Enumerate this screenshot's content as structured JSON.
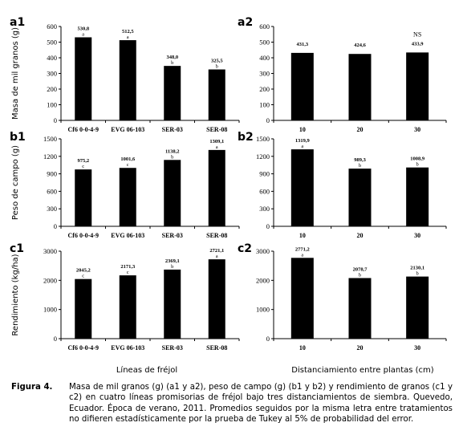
{
  "figure": {
    "xtitle_left": "Líneas de fréjol",
    "xtitle_right": "Distanciamiento entre plantas (cm)",
    "caption_label": "Figura 4.",
    "caption_text": "Masa de mil granos (g) (a1 y a2), peso de campo (g) (b1 y b2) y rendimiento de granos (c1 y c2) en cuatro líneas promisorias de fréjol bajo tres distanciamientos de siembra. Quevedo, Ecuador. Época de verano, 2011. Promedios seguidos por la misma letra entre tratamientos no difieren estadísticamente por la prueba de Tukey al 5% de probabilidad del error."
  },
  "chart_data": [
    {
      "id": "a1",
      "panel_label": "a1",
      "type": "bar",
      "ylabel": "Masa de mil granos (g)",
      "categories": [
        "Cf6 0-0-4-9",
        "EVG 06-103",
        "SER-03",
        "SER-08"
      ],
      "values": [
        530.8,
        512.5,
        348.0,
        325.5
      ],
      "value_labels": [
        "530,8",
        "512,5",
        "348,0",
        "325,5"
      ],
      "letters": [
        "a",
        "a",
        "b",
        "b"
      ],
      "ylim": [
        0,
        600
      ],
      "yticks": [
        0,
        100,
        200,
        300,
        400,
        500,
        600
      ],
      "ytick_labels": [
        "0",
        "100",
        "200",
        "300",
        "400",
        "500",
        "600"
      ],
      "annotation": ""
    },
    {
      "id": "a2",
      "panel_label": "a2",
      "type": "bar",
      "ylabel": "",
      "categories": [
        "10",
        "20",
        "30"
      ],
      "values": [
        431.3,
        424.6,
        433.9
      ],
      "value_labels": [
        "431,3",
        "424,6",
        "433,9"
      ],
      "letters": [
        "",
        "",
        ""
      ],
      "ylim": [
        0,
        600
      ],
      "yticks": [
        0,
        100,
        200,
        300,
        400,
        500,
        600
      ],
      "ytick_labels": [
        "0",
        "100",
        "200",
        "300",
        "400",
        "500",
        "600"
      ],
      "annotation": "NS"
    },
    {
      "id": "b1",
      "panel_label": "b1",
      "type": "bar",
      "ylabel": "Peso de campo (g)",
      "categories": [
        "Cf6 0-0-4-9",
        "EVG 06-103",
        "SER-03",
        "SER-08"
      ],
      "values": [
        975.2,
        1001.6,
        1138.2,
        1309.1
      ],
      "value_labels": [
        "975,2",
        "1001,6",
        "1138,2",
        "1309,1"
      ],
      "letters": [
        "c",
        "c",
        "b",
        "a"
      ],
      "ylim": [
        0,
        1500
      ],
      "yticks": [
        0,
        300,
        600,
        900,
        1200,
        1500
      ],
      "ytick_labels": [
        "0",
        "300",
        "600",
        "900",
        "1200",
        "1500"
      ],
      "annotation": ""
    },
    {
      "id": "b2",
      "panel_label": "b2",
      "type": "bar",
      "ylabel": "",
      "categories": [
        "10",
        "20",
        "30"
      ],
      "values": [
        1319.9,
        989.3,
        1008.9
      ],
      "value_labels": [
        "1319,9",
        "989,3",
        "1008,9"
      ],
      "letters": [
        "a",
        "b",
        "b"
      ],
      "ylim": [
        0,
        1500
      ],
      "yticks": [
        0,
        300,
        600,
        900,
        1200,
        1500
      ],
      "ytick_labels": [
        "0",
        "300",
        "600",
        "900",
        "1200",
        "1500"
      ],
      "annotation": ""
    },
    {
      "id": "c1",
      "panel_label": "c1",
      "type": "bar",
      "ylabel": "Rendimiento (kg/ha)",
      "categories": [
        "Cf6 0-0-4-9",
        "EVG 06-103",
        "SER-03",
        "SER-08"
      ],
      "values": [
        2045.2,
        2171.3,
        2369.1,
        2721.1
      ],
      "value_labels": [
        "2045,2",
        "2171,3",
        "2369,1",
        "2721,1"
      ],
      "letters": [
        "c",
        "c",
        "b",
        "a"
      ],
      "ylim": [
        0,
        3000
      ],
      "yticks": [
        0,
        1000,
        2000,
        3000
      ],
      "ytick_labels": [
        "0",
        "1000",
        "2000",
        "3000"
      ],
      "annotation": ""
    },
    {
      "id": "c2",
      "panel_label": "c2",
      "type": "bar",
      "ylabel": "",
      "categories": [
        "10",
        "20",
        "30"
      ],
      "values": [
        2771.2,
        2078.7,
        2130.1
      ],
      "value_labels": [
        "2771,2",
        "2078,7",
        "2130,1"
      ],
      "letters": [
        "a",
        "b",
        "b"
      ],
      "ylim": [
        0,
        3000
      ],
      "yticks": [
        0,
        1000,
        2000,
        3000
      ],
      "ytick_labels": [
        "0",
        "1000",
        "2000",
        "3000"
      ],
      "annotation": ""
    }
  ]
}
